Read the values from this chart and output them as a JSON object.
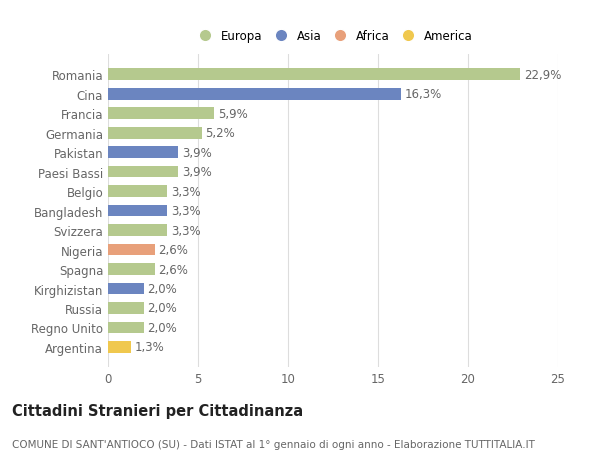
{
  "countries": [
    "Romania",
    "Cina",
    "Francia",
    "Germania",
    "Pakistan",
    "Paesi Bassi",
    "Belgio",
    "Bangladesh",
    "Svizzera",
    "Nigeria",
    "Spagna",
    "Kirghizistan",
    "Russia",
    "Regno Unito",
    "Argentina"
  ],
  "values": [
    22.9,
    16.3,
    5.9,
    5.2,
    3.9,
    3.9,
    3.3,
    3.3,
    3.3,
    2.6,
    2.6,
    2.0,
    2.0,
    2.0,
    1.3
  ],
  "regions": [
    "Europa",
    "Asia",
    "Europa",
    "Europa",
    "Asia",
    "Europa",
    "Europa",
    "Asia",
    "Europa",
    "Africa",
    "Europa",
    "Asia",
    "Europa",
    "Europa",
    "America"
  ],
  "colors": {
    "Europa": "#b5c98e",
    "Asia": "#6b85c0",
    "Africa": "#e8a07a",
    "America": "#f0c84e"
  },
  "legend_order": [
    "Europa",
    "Asia",
    "Africa",
    "America"
  ],
  "labels": [
    "22,9%",
    "16,3%",
    "5,9%",
    "5,2%",
    "3,9%",
    "3,9%",
    "3,3%",
    "3,3%",
    "3,3%",
    "2,6%",
    "2,6%",
    "2,0%",
    "2,0%",
    "2,0%",
    "1,3%"
  ],
  "xlim": [
    0,
    25
  ],
  "xticks": [
    0,
    5,
    10,
    15,
    20,
    25
  ],
  "title": "Cittadini Stranieri per Cittadinanza",
  "subtitle": "COMUNE DI SANT'ANTIOCO (SU) - Dati ISTAT al 1° gennaio di ogni anno - Elaborazione TUTTITALIA.IT",
  "background_color": "#ffffff",
  "grid_color": "#dddddd",
  "bar_height": 0.6,
  "label_fontsize": 8.5,
  "tick_fontsize": 8.5,
  "title_fontsize": 10.5,
  "subtitle_fontsize": 7.5
}
